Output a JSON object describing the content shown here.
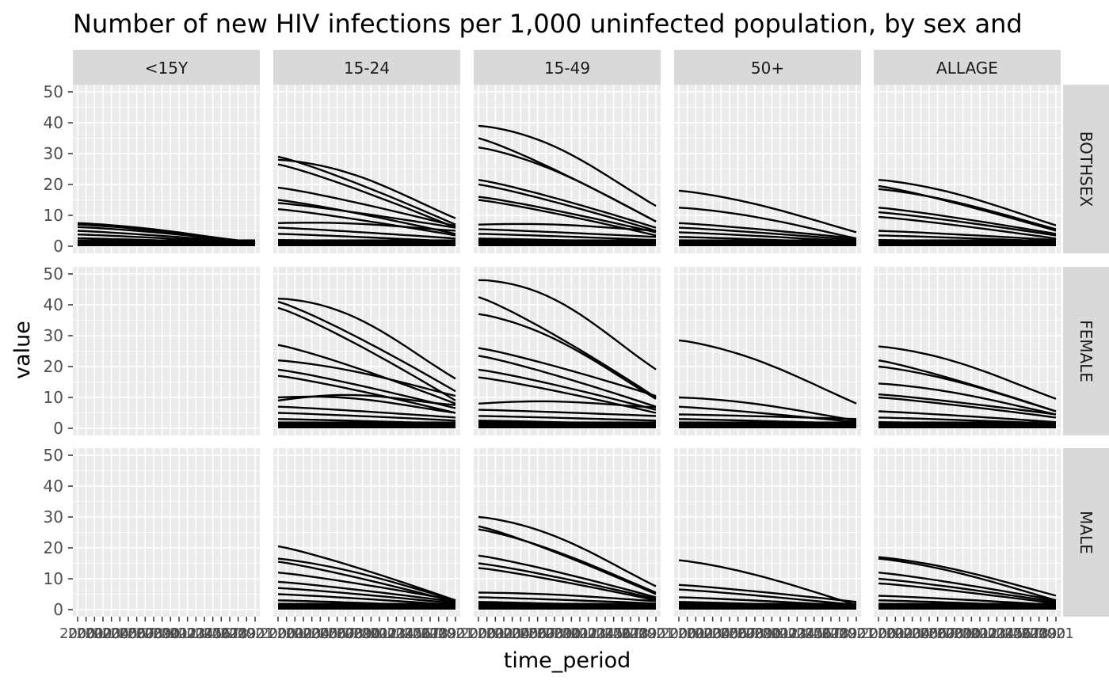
{
  "chart_data": {
    "type": "line",
    "title": "Number of new HIV infections per 1,000 uninfected population, by sex and",
    "xlabel": "time_period",
    "ylabel": "value",
    "ylim": [
      0,
      50
    ],
    "yticks": [
      0,
      10,
      20,
      30,
      40,
      50
    ],
    "x": [
      2000,
      2001,
      2002,
      2003,
      2004,
      2005,
      2006,
      2007,
      2008,
      2009,
      2010,
      2011,
      2012,
      2013,
      2014,
      2015,
      2016,
      2017,
      2018,
      2019,
      2020,
      2021
    ],
    "x_tick_labels": [
      "2000",
      "2001",
      "2002",
      "2003",
      "2004",
      "2005",
      "2006",
      "2007",
      "2008",
      "2009",
      "2010",
      "2011",
      "2012",
      "2013",
      "2014",
      "2015",
      "2016",
      "2017",
      "2018",
      "2019",
      "2020",
      "2021"
    ],
    "col_facets": [
      "<15Y",
      "15-24",
      "15-49",
      "50+",
      "ALLAGE"
    ],
    "row_facets": [
      "BOTHSEX",
      "FEMALE",
      "MALE"
    ],
    "grid": true,
    "panel_background": "#ebebeb",
    "strip_background": "#d9d9d9",
    "line_color": "#000000",
    "panels": [
      {
        "col": "<15Y",
        "row": "BOTHSEX",
        "series": [
          {
            "start": 7.5,
            "end": 1.2,
            "bump": 0.6
          },
          {
            "start": 7.0,
            "end": 1.4,
            "bump": 0.4
          },
          {
            "start": 6.2,
            "end": 1.3,
            "bump": 0.3
          },
          {
            "start": 5.0,
            "end": 1.1,
            "bump": 0.0
          },
          {
            "start": 3.8,
            "end": 1.0,
            "bump": 0.0
          },
          {
            "start": 2.6,
            "end": 0.8,
            "bump": 0.0
          },
          {
            "start": 1.5,
            "end": 0.5,
            "bump": 0.0
          },
          {
            "start": 0.8,
            "end": 0.3,
            "bump": 0.0
          }
        ]
      },
      {
        "col": "15-24",
        "row": "BOTHSEX",
        "series": [
          {
            "start": 29.0,
            "end": 7.0,
            "bump": 0.0
          },
          {
            "start": 28.0,
            "end": 10.5,
            "bump": 3.0
          },
          {
            "start": 26.5,
            "end": 6.0,
            "bump": 0.0
          },
          {
            "start": 19.0,
            "end": 6.5,
            "bump": 0.0
          },
          {
            "start": 15.0,
            "end": 4.0,
            "bump": 0.0
          },
          {
            "start": 14.0,
            "end": 6.0,
            "bump": 0.0
          },
          {
            "start": 12.0,
            "end": 3.5,
            "bump": 0.0
          },
          {
            "start": 7.5,
            "end": 5.5,
            "bump": 1.0
          },
          {
            "start": 6.0,
            "end": 2.5,
            "bump": 0.0
          },
          {
            "start": 4.0,
            "end": 1.5,
            "bump": 0.0
          },
          {
            "start": 2.0,
            "end": 1.0,
            "bump": 0.0
          },
          {
            "start": 1.0,
            "end": 0.5,
            "bump": 0.0
          }
        ]
      },
      {
        "col": "15-49",
        "row": "BOTHSEX",
        "series": [
          {
            "start": 39.0,
            "end": 15.0,
            "bump": 4.0
          },
          {
            "start": 35.0,
            "end": 8.0,
            "bump": 0.0
          },
          {
            "start": 32.0,
            "end": 9.0,
            "bump": 2.0
          },
          {
            "start": 21.5,
            "end": 6.0,
            "bump": 0.0
          },
          {
            "start": 20.0,
            "end": 5.0,
            "bump": 0.0
          },
          {
            "start": 16.0,
            "end": 4.5,
            "bump": 0.0
          },
          {
            "start": 15.0,
            "end": 3.5,
            "bump": 0.0
          },
          {
            "start": 7.0,
            "end": 5.5,
            "bump": 1.0
          },
          {
            "start": 5.5,
            "end": 3.0,
            "bump": 0.0
          },
          {
            "start": 4.0,
            "end": 2.0,
            "bump": 0.0
          },
          {
            "start": 2.5,
            "end": 1.2,
            "bump": 0.0
          },
          {
            "start": 1.0,
            "end": 0.5,
            "bump": 0.0
          }
        ]
      },
      {
        "col": "50+",
        "row": "BOTHSEX",
        "series": [
          {
            "start": 18.0,
            "end": 5.0,
            "bump": 1.0
          },
          {
            "start": 12.5,
            "end": 3.0,
            "bump": 1.0
          },
          {
            "start": 7.5,
            "end": 2.5,
            "bump": 0.0
          },
          {
            "start": 6.0,
            "end": 2.0,
            "bump": 0.0
          },
          {
            "start": 4.5,
            "end": 1.5,
            "bump": 0.0
          },
          {
            "start": 3.0,
            "end": 1.0,
            "bump": 0.0
          },
          {
            "start": 1.5,
            "end": 0.5,
            "bump": 0.0
          }
        ]
      },
      {
        "col": "ALLAGE",
        "row": "BOTHSEX",
        "series": [
          {
            "start": 21.5,
            "end": 7.5,
            "bump": 1.5
          },
          {
            "start": 19.5,
            "end": 5.0,
            "bump": 0.0
          },
          {
            "start": 18.5,
            "end": 6.0,
            "bump": 1.0
          },
          {
            "start": 12.5,
            "end": 4.0,
            "bump": 0.0
          },
          {
            "start": 11.0,
            "end": 3.5,
            "bump": 0.0
          },
          {
            "start": 9.5,
            "end": 2.5,
            "bump": 0.0
          },
          {
            "start": 5.0,
            "end": 2.0,
            "bump": 0.0
          },
          {
            "start": 3.5,
            "end": 1.5,
            "bump": 0.0
          },
          {
            "start": 2.0,
            "end": 0.8,
            "bump": 0.0
          }
        ]
      },
      {
        "col": "<15Y",
        "row": "FEMALE",
        "series": []
      },
      {
        "col": "15-24",
        "row": "FEMALE",
        "series": [
          {
            "start": 42.0,
            "end": 18.5,
            "bump": 5.0
          },
          {
            "start": 41.0,
            "end": 12.0,
            "bump": 0.0
          },
          {
            "start": 39.0,
            "end": 9.0,
            "bump": 0.0
          },
          {
            "start": 27.0,
            "end": 8.0,
            "bump": 0.0
          },
          {
            "start": 22.0,
            "end": 11.0,
            "bump": 1.0
          },
          {
            "start": 19.0,
            "end": 6.5,
            "bump": 0.0
          },
          {
            "start": 17.0,
            "end": 5.0,
            "bump": 0.0
          },
          {
            "start": 10.0,
            "end": 6.0,
            "bump": 2.0
          },
          {
            "start": 9.0,
            "end": 9.0,
            "bump": 3.0
          },
          {
            "start": 7.0,
            "end": 3.5,
            "bump": 0.0
          },
          {
            "start": 5.0,
            "end": 2.5,
            "bump": 0.0
          },
          {
            "start": 3.0,
            "end": 1.5,
            "bump": 0.0
          },
          {
            "start": 1.5,
            "end": 0.8,
            "bump": 0.0
          }
        ]
      },
      {
        "col": "15-49",
        "row": "FEMALE",
        "series": [
          {
            "start": 48.0,
            "end": 22.0,
            "bump": 6.0
          },
          {
            "start": 42.5,
            "end": 10.0,
            "bump": 0.0
          },
          {
            "start": 37.0,
            "end": 11.0,
            "bump": 3.0
          },
          {
            "start": 26.0,
            "end": 10.5,
            "bump": 0.0
          },
          {
            "start": 23.5,
            "end": 7.0,
            "bump": 0.0
          },
          {
            "start": 19.0,
            "end": 6.0,
            "bump": 0.0
          },
          {
            "start": 16.5,
            "end": 5.0,
            "bump": 0.0
          },
          {
            "start": 8.0,
            "end": 7.5,
            "bump": 1.5
          },
          {
            "start": 6.0,
            "end": 4.0,
            "bump": 0.0
          },
          {
            "start": 4.0,
            "end": 2.5,
            "bump": 0.0
          },
          {
            "start": 2.5,
            "end": 1.2,
            "bump": 0.0
          },
          {
            "start": 1.0,
            "end": 0.5,
            "bump": 0.0
          }
        ]
      },
      {
        "col": "50+",
        "row": "FEMALE",
        "series": [
          {
            "start": 28.5,
            "end": 9.0,
            "bump": 2.0
          },
          {
            "start": 10.0,
            "end": 3.0,
            "bump": 1.0
          },
          {
            "start": 7.0,
            "end": 2.0,
            "bump": 0.0
          },
          {
            "start": 4.5,
            "end": 3.0,
            "bump": 0.0
          },
          {
            "start": 3.0,
            "end": 1.5,
            "bump": 0.0
          },
          {
            "start": 1.5,
            "end": 0.5,
            "bump": 0.0
          }
        ]
      },
      {
        "col": "ALLAGE",
        "row": "FEMALE",
        "series": [
          {
            "start": 26.5,
            "end": 10.5,
            "bump": 2.0
          },
          {
            "start": 22.0,
            "end": 5.5,
            "bump": 0.0
          },
          {
            "start": 20.0,
            "end": 6.0,
            "bump": 1.0
          },
          {
            "start": 14.5,
            "end": 5.0,
            "bump": 1.0
          },
          {
            "start": 11.0,
            "end": 4.5,
            "bump": 0.0
          },
          {
            "start": 10.0,
            "end": 3.5,
            "bump": 0.0
          },
          {
            "start": 5.5,
            "end": 2.0,
            "bump": 0.0
          },
          {
            "start": 3.5,
            "end": 1.5,
            "bump": 0.0
          },
          {
            "start": 2.0,
            "end": 0.8,
            "bump": 0.0
          }
        ]
      },
      {
        "col": "<15Y",
        "row": "MALE",
        "series": []
      },
      {
        "col": "15-24",
        "row": "MALE",
        "series": [
          {
            "start": 20.5,
            "end": 3.0,
            "bump": 0.0
          },
          {
            "start": 16.5,
            "end": 3.5,
            "bump": 1.0
          },
          {
            "start": 15.5,
            "end": 2.5,
            "bump": 0.0
          },
          {
            "start": 12.0,
            "end": 3.0,
            "bump": 0.0
          },
          {
            "start": 9.0,
            "end": 2.5,
            "bump": 0.0
          },
          {
            "start": 7.0,
            "end": 2.0,
            "bump": 0.0
          },
          {
            "start": 5.0,
            "end": 1.5,
            "bump": 0.0
          },
          {
            "start": 3.0,
            "end": 1.0,
            "bump": 0.0
          },
          {
            "start": 1.5,
            "end": 0.5,
            "bump": 0.0
          }
        ]
      },
      {
        "col": "15-49",
        "row": "MALE",
        "series": [
          {
            "start": 30.0,
            "end": 9.0,
            "bump": 3.0
          },
          {
            "start": 27.0,
            "end": 5.0,
            "bump": 0.0
          },
          {
            "start": 26.0,
            "end": 6.0,
            "bump": 1.0
          },
          {
            "start": 17.5,
            "end": 4.0,
            "bump": 0.0
          },
          {
            "start": 15.0,
            "end": 3.5,
            "bump": 0.0
          },
          {
            "start": 13.5,
            "end": 3.0,
            "bump": 0.0
          },
          {
            "start": 5.5,
            "end": 3.0,
            "bump": 0.5
          },
          {
            "start": 4.0,
            "end": 2.0,
            "bump": 0.0
          },
          {
            "start": 2.5,
            "end": 1.0,
            "bump": 0.0
          },
          {
            "start": 1.0,
            "end": 0.5,
            "bump": 0.0
          }
        ]
      },
      {
        "col": "50+",
        "row": "MALE",
        "series": [
          {
            "start": 16.0,
            "end": 2.0,
            "bump": 1.0
          },
          {
            "start": 8.0,
            "end": 2.5,
            "bump": 0.0
          },
          {
            "start": 6.5,
            "end": 1.5,
            "bump": 0.0
          },
          {
            "start": 4.0,
            "end": 1.2,
            "bump": 0.0
          },
          {
            "start": 2.5,
            "end": 0.8,
            "bump": 0.0
          },
          {
            "start": 1.0,
            "end": 0.4,
            "bump": 0.0
          }
        ]
      },
      {
        "col": "ALLAGE",
        "row": "MALE",
        "series": [
          {
            "start": 17.0,
            "end": 5.0,
            "bump": 1.0
          },
          {
            "start": 16.5,
            "end": 3.5,
            "bump": 1.0
          },
          {
            "start": 12.0,
            "end": 3.0,
            "bump": 0.0
          },
          {
            "start": 10.0,
            "end": 2.5,
            "bump": 0.0
          },
          {
            "start": 8.5,
            "end": 2.0,
            "bump": 0.0
          },
          {
            "start": 4.5,
            "end": 1.5,
            "bump": 0.0
          },
          {
            "start": 3.0,
            "end": 1.0,
            "bump": 0.0
          },
          {
            "start": 1.5,
            "end": 0.5,
            "bump": 0.0
          }
        ]
      }
    ]
  }
}
